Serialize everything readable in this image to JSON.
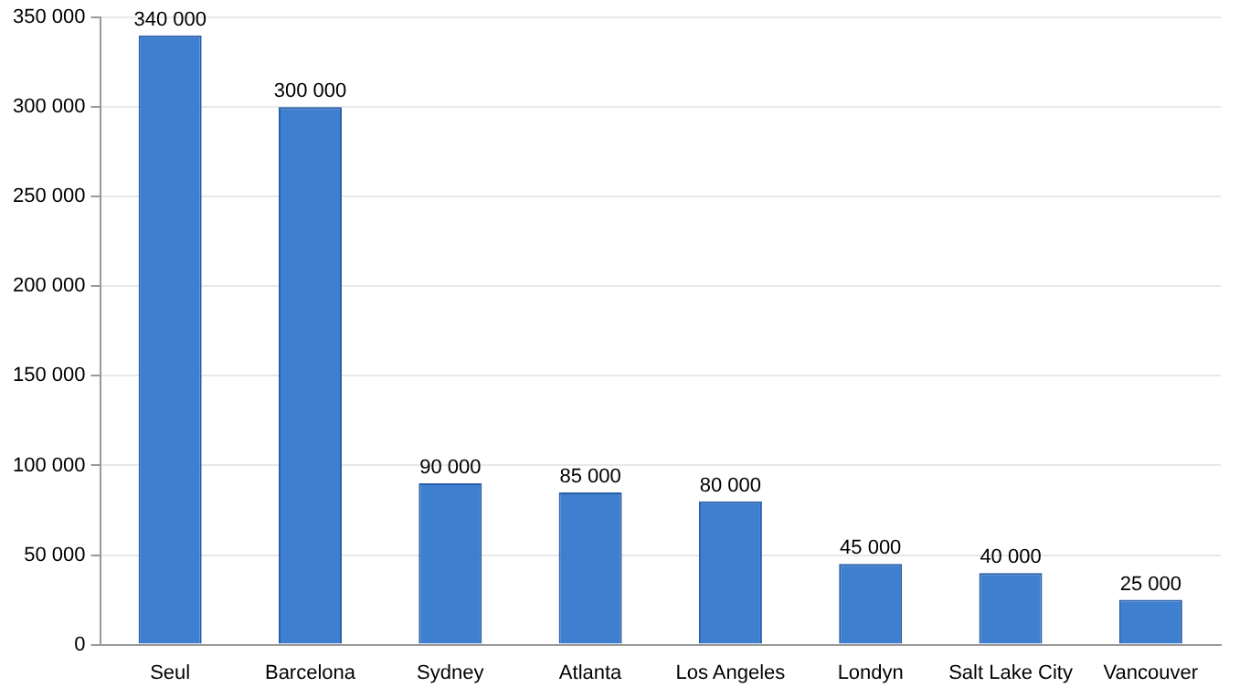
{
  "chart_data": {
    "type": "bar",
    "categories": [
      "Seul",
      "Barcelona",
      "Sydney",
      "Atlanta",
      "Los Angeles",
      "Londyn",
      "Salt Lake City",
      "Vancouver"
    ],
    "values": [
      340000,
      300000,
      90000,
      85000,
      80000,
      45000,
      40000,
      25000
    ],
    "value_labels": [
      "340 000",
      "300 000",
      "90 000",
      "85 000",
      "80 000",
      "45 000",
      "40 000",
      "25 000"
    ],
    "color": "#3f7fd0",
    "ylim": [
      0,
      350000
    ],
    "yticks": [
      {
        "value": 0,
        "label": "0"
      },
      {
        "value": 50000,
        "label": "50 000"
      },
      {
        "value": 100000,
        "label": "100 000"
      },
      {
        "value": 150000,
        "label": "150 000"
      },
      {
        "value": 200000,
        "label": "200 000"
      },
      {
        "value": 250000,
        "label": "250 000"
      },
      {
        "value": 300000,
        "label": "300 000"
      },
      {
        "value": 350000,
        "label": "350 000"
      }
    ],
    "grid": "y",
    "legend": false
  }
}
